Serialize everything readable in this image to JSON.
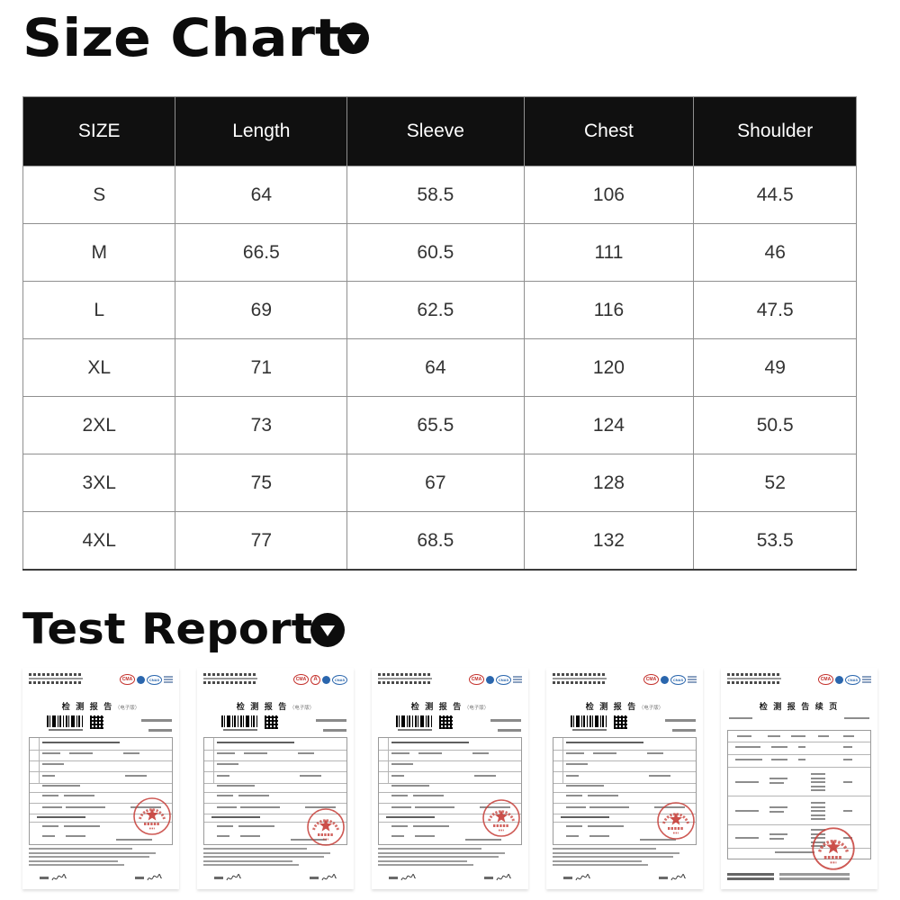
{
  "size_chart": {
    "title": "Size Chart",
    "columns": [
      "SIZE",
      "Length",
      "Sleeve",
      "Chest",
      "Shoulder"
    ],
    "rows": [
      [
        "S",
        "64",
        "58.5",
        "106",
        "44.5"
      ],
      [
        "M",
        "66.5",
        "60.5",
        "111",
        "46"
      ],
      [
        "L",
        "69",
        "62.5",
        "116",
        "47.5"
      ],
      [
        "XL",
        "71",
        "64",
        "120",
        "49"
      ],
      [
        "2XL",
        "73",
        "65.5",
        "124",
        "50.5"
      ],
      [
        "3XL",
        "75",
        "67",
        "128",
        "52"
      ],
      [
        "4XL",
        "77",
        "68.5",
        "132",
        "53.5"
      ]
    ]
  },
  "test_report": {
    "title": "Test Report",
    "logo_labels": {
      "cma": "CMA",
      "a": "A",
      "cnas": "CNAS"
    },
    "certificates": [
      {
        "name": "test-report-certificate-1",
        "title": "检 测 报 告",
        "subtitle": "（电子版）",
        "variant": "report",
        "logos": [
          "cma",
          "dot",
          "cnas",
          "txt"
        ]
      },
      {
        "name": "test-report-certificate-2",
        "title": "检 测 报 告",
        "subtitle": "（电子版）",
        "variant": "report",
        "logos": [
          "cma",
          "a",
          "dot",
          "cnas"
        ]
      },
      {
        "name": "test-report-certificate-3",
        "title": "检 测 报 告",
        "subtitle": "（电子版）",
        "variant": "report",
        "logos": [
          "cma",
          "dot",
          "cnas",
          "txt"
        ]
      },
      {
        "name": "test-report-certificate-4",
        "title": "检 测 报 告",
        "subtitle": "（电子版）",
        "variant": "report",
        "logos": [
          "cma",
          "dot",
          "cnas",
          "txt"
        ]
      },
      {
        "name": "test-report-certificate-5",
        "title": "检 测 报 告 续 页",
        "subtitle": "",
        "variant": "continuation",
        "logos": [
          "cma",
          "dot",
          "cnas",
          "txt"
        ]
      }
    ]
  },
  "colors": {
    "header_bg": "#101010",
    "table_border": "#8f8f8f",
    "stamp_red": "#c63c36",
    "logo_red": "#c4302b",
    "logo_blue": "#2a66ad"
  }
}
